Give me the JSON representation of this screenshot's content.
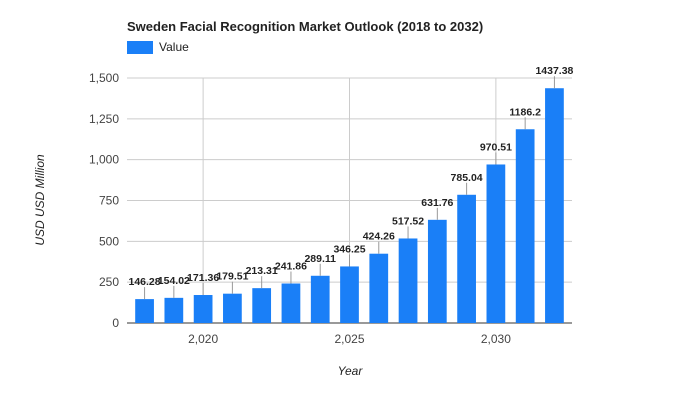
{
  "chart_data": {
    "type": "bar",
    "title": "Sweden Facial Recognition Market Outlook (2018 to 2032)",
    "xlabel": "Year",
    "ylabel": "USD USD Million",
    "legend": {
      "position": "top-left",
      "entries": [
        "Value"
      ]
    },
    "series": [
      {
        "name": "Value",
        "color": "#1a7ff7",
        "x": [
          2018,
          2019,
          2020,
          2021,
          2022,
          2023,
          2024,
          2025,
          2026,
          2027,
          2028,
          2029,
          2030,
          2031,
          2032
        ],
        "values": [
          146.28,
          154.02,
          171.36,
          179.51,
          213.31,
          241.86,
          289.11,
          346.25,
          424.26,
          517.52,
          631.76,
          785.04,
          970.51,
          1186.2,
          1437.38
        ],
        "labels": [
          "146.28",
          "154.02",
          "171.36",
          "179.51",
          "213.31",
          "241.86",
          "289.11",
          "346.25",
          "424.26",
          "517.52",
          "631.76",
          "785.04",
          "970.51",
          "1186.2",
          "1437.38"
        ]
      }
    ],
    "ylim": [
      0,
      1500
    ],
    "yticks": [
      0,
      250,
      500,
      750,
      1000,
      1250,
      1500
    ],
    "ytick_labels": [
      "0",
      "250",
      "500",
      "750",
      "1,000",
      "1,250",
      "1,500"
    ],
    "xticks": [
      2020,
      2025,
      2030
    ],
    "xtick_labels": [
      "2,020",
      "2,025",
      "2,030"
    ],
    "grid": true
  }
}
